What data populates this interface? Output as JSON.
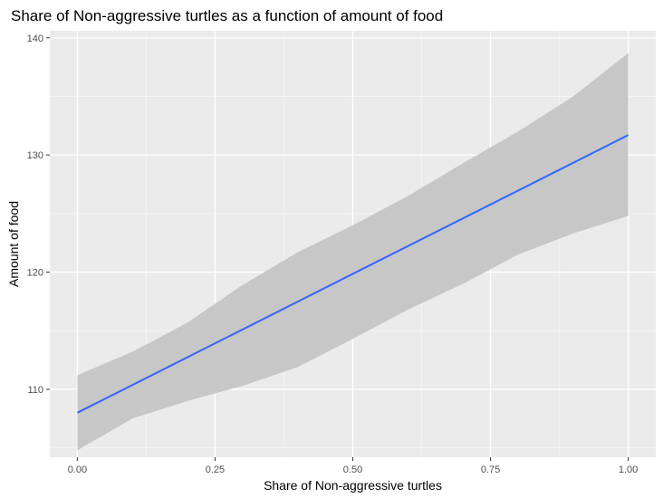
{
  "chart_data": {
    "type": "line",
    "title": "Share of Non-aggressive turtles as a function of amount of food",
    "xlabel": "Share of Non-aggressive turtles",
    "ylabel": "Amount of food",
    "xlim": [
      -0.05,
      1.05
    ],
    "ylim": [
      104.2,
      140.6
    ],
    "x_ticks": [
      0.0,
      0.25,
      0.5,
      0.75,
      1.0
    ],
    "x_tick_labels": [
      "0.00",
      "0.25",
      "0.50",
      "0.75",
      "1.00"
    ],
    "y_ticks": [
      110,
      120,
      130,
      140
    ],
    "y_tick_labels": [
      "110",
      "120",
      "130",
      "140"
    ],
    "grid": true,
    "series": [
      {
        "kind": "fit-line",
        "x": [
          0.0,
          1.0
        ],
        "y": [
          108.0,
          131.7
        ]
      }
    ],
    "confidence_band": {
      "x": [
        0.0,
        0.1,
        0.2,
        0.3,
        0.4,
        0.5,
        0.6,
        0.7,
        0.8,
        0.9,
        1.0
      ],
      "upper": [
        111.2,
        113.2,
        115.7,
        118.9,
        121.7,
        124.0,
        126.5,
        129.3,
        132.0,
        135.0,
        138.7
      ],
      "lower": [
        104.8,
        107.5,
        109.0,
        110.3,
        111.9,
        114.3,
        116.8,
        119.0,
        121.5,
        123.3,
        124.8
      ]
    },
    "colors": {
      "panel_background": "#ebebeb",
      "grid_major": "#ffffff",
      "line": "#3366ff",
      "band": "#c7c7c7"
    }
  }
}
